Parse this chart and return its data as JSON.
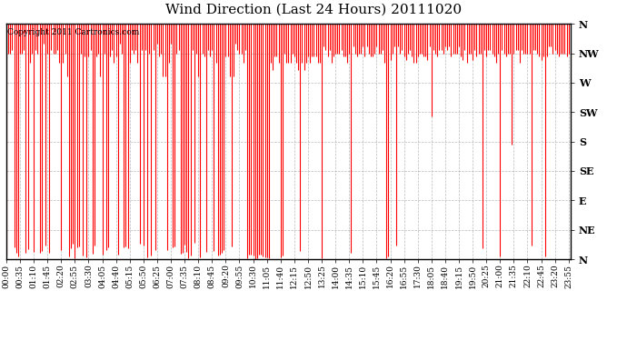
{
  "title": "Wind Direction (Last 24 Hours) 20111020",
  "copyright_text": "Copyright 2011 Cartronics.com",
  "line_color": "#FF0000",
  "background_color": "#FFFFFF",
  "grid_color": "#AAAAAA",
  "ytick_labels": [
    "N",
    "NW",
    "W",
    "SW",
    "S",
    "SE",
    "E",
    "NE",
    "N"
  ],
  "ytick_values": [
    360,
    315,
    270,
    225,
    180,
    135,
    90,
    45,
    0
  ],
  "ylim": [
    0,
    360
  ],
  "title_fontsize": 11,
  "xlabel_fontsize": 6.5,
  "ylabel_fontsize": 8,
  "copyright_fontsize": 6.5,
  "figwidth": 6.9,
  "figheight": 3.75,
  "dpi": 100
}
